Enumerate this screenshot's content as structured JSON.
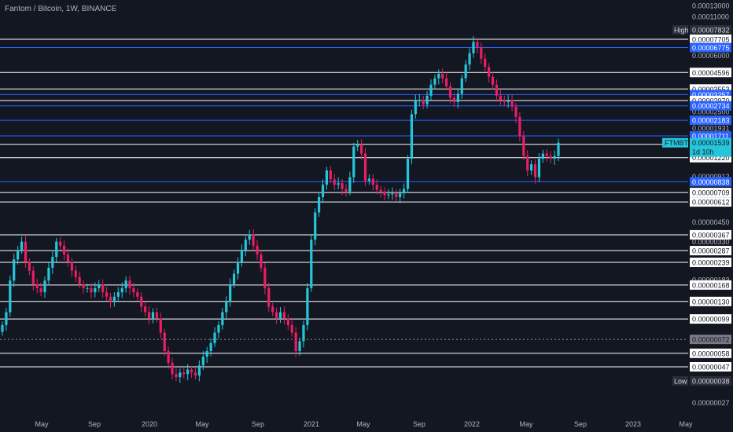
{
  "header": {
    "title": "Fantom / Bitcoin, 1W, BINANCE"
  },
  "colors": {
    "background": "#131722",
    "up": "#26c6da",
    "down": "#e91e63",
    "level_white": "#ffffff",
    "level_blue": "#2962ff",
    "label_dark": "#2a2e39"
  },
  "chart_data": {
    "type": "candlestick",
    "title": "Fantom / Bitcoin, 1W, BINANCE",
    "symbol": "FTMBTC",
    "timeframe": "1W",
    "exchange": "BINANCE",
    "y_scale": "log",
    "y_ticks": [
      "0.00013000",
      "0.00011000",
      "0.00007705",
      "0.00006000",
      "0.00004596",
      "0.00003553",
      "0.00002500",
      "0.00001931",
      "0.00000912",
      "0.00000450",
      "0.00000330",
      "0.00000183",
      "0.00000072",
      "0.00000027"
    ],
    "x_ticks": [
      "May",
      "Sep",
      "2020",
      "May",
      "Sep",
      "2021",
      "May",
      "Sep",
      "2022",
      "May",
      "Sep",
      "2023",
      "May"
    ],
    "levels": [
      {
        "value": "0.00007705",
        "color": "white"
      },
      {
        "value": "0.00006775",
        "color": "blue"
      },
      {
        "value": "0.00004596",
        "color": "white"
      },
      {
        "value": "0.00003553",
        "color": "white"
      },
      {
        "value": "0.00003257",
        "color": "blue"
      },
      {
        "value": "0.00002970",
        "color": "white"
      },
      {
        "value": "0.00002734",
        "color": "blue"
      },
      {
        "value": "0.00002183",
        "color": "blue"
      },
      {
        "value": "0.00001711",
        "color": "blue"
      },
      {
        "value": "0.00001502",
        "color": "white"
      },
      {
        "value": "0.00001220",
        "color": "white"
      },
      {
        "value": "0.00000838",
        "color": "blue"
      },
      {
        "value": "0.00000709",
        "color": "white"
      },
      {
        "value": "0.00000612",
        "color": "white"
      },
      {
        "value": "0.00000367",
        "color": "white"
      },
      {
        "value": "0.00000287",
        "color": "white"
      },
      {
        "value": "0.00000239",
        "color": "white"
      },
      {
        "value": "0.00000168",
        "color": "white"
      },
      {
        "value": "0.00000130",
        "color": "white"
      },
      {
        "value": "0.00000099",
        "color": "white"
      },
      {
        "value": "0.00000058",
        "color": "white"
      },
      {
        "value": "0.00000047",
        "color": "white"
      }
    ],
    "current_price": {
      "symbol_label": "FTMBTC",
      "value": "0.00001539",
      "countdown": "1d 10h"
    },
    "high": {
      "label": "High",
      "value": "0.00007832"
    },
    "low": {
      "label": "Low",
      "value": "0.00000038"
    },
    "dotted_level": {
      "value": "0.00000072"
    },
    "series_close": [
      9e-07,
      1.1e-06,
      1.8e-06,
      2.5e-06,
      2.9e-06,
      3.3e-06,
      2.4e-06,
      2.1e-06,
      1.7e-06,
      1.6e-06,
      1.5e-06,
      1.8e-06,
      2.2e-06,
      2.6e-06,
      3.3e-06,
      3.1e-06,
      2.7e-06,
      2.4e-06,
      2.1e-06,
      1.9e-06,
      1.7e-06,
      1.6e-06,
      1.6e-06,
      1.5e-06,
      1.6e-06,
      1.7e-06,
      1.5e-06,
      1.4e-06,
      1.3e-06,
      1.4e-06,
      1.5e-06,
      1.6e-06,
      1.8e-06,
      1.6e-06,
      1.5e-06,
      1.4e-06,
      1.2e-06,
      1.1e-06,
      1e-06,
      1.1e-06,
      1e-06,
      8e-07,
      6e-07,
      5e-07,
      4.2e-07,
      4e-07,
      4.3e-07,
      4.2e-07,
      4.5e-07,
      4.3e-07,
      4.1e-07,
      4.8e-07,
      5.5e-07,
      6e-07,
      6.8e-07,
      8e-07,
      9e-07,
      1.1e-06,
      1.3e-06,
      1.7e-06,
      2e-06,
      2.4e-06,
      2.9e-06,
      3.4e-06,
      3.7e-06,
      3.1e-06,
      2.7e-06,
      2.2e-06,
      1.6e-06,
      1.2e-06,
      1.1e-06,
      1e-06,
      1.1e-06,
      1e-06,
      9e-07,
      8e-07,
      6e-07,
      7e-07,
      9e-07,
      1.6e-06,
      3.4e-06,
      5.2e-06,
      6.6e-06,
      8e-06,
      1e-05,
      8.7e-06,
      8e-06,
      8.2e-06,
      7.5e-06,
      7.2e-06,
      9e-06,
      1.45e-05,
      1.5e-05,
      1.3e-05,
      8.5e-06,
      8.8e-06,
      8e-06,
      7.4e-06,
      7.2e-06,
      6.8e-06,
      6.9e-06,
      7e-06,
      6.6e-06,
      7e-06,
      7.5e-06,
      1.2e-05,
      2.4e-05,
      3e-05,
      3e-05,
      2.8e-05,
      3.2e-05,
      3.8e-05,
      4.2e-05,
      4.5e-05,
      4.2e-05,
      3.7e-05,
      3.1e-05,
      2.9e-05,
      3.3e-05,
      4.2e-05,
      5.2e-05,
      6.2e-05,
      7.4e-05,
      6.8e-05,
      5.7e-05,
      5e-05,
      4.3e-05,
      3.8e-05,
      3.2e-05,
      3e-05,
      2.9e-05,
      3e-05,
      2.7e-05,
      2.3e-05,
      1.7e-05,
      1.25e-05,
      1e-05,
      1.1e-05,
      9e-06,
      1.2e-05,
      1.3e-05,
      1.25e-05,
      1.2e-05,
      1.25e-05,
      1.54e-05
    ]
  }
}
